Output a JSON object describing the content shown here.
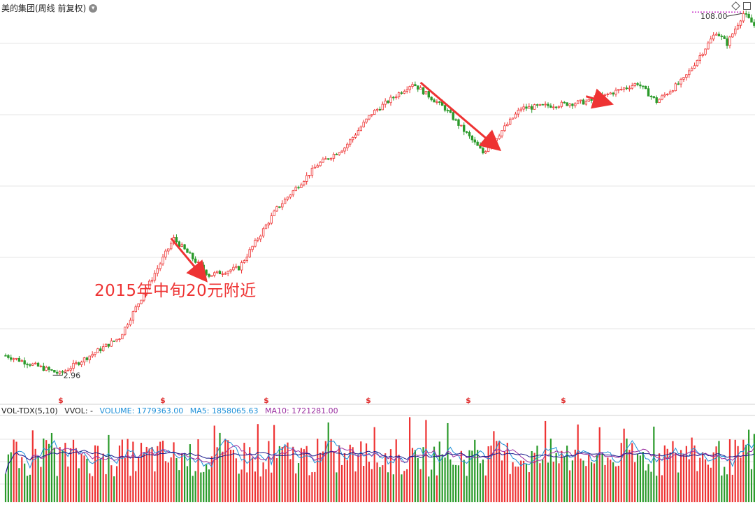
{
  "header": {
    "title": "美的集团(周线 前复权)",
    "settings_icon": "chevron-down-icon",
    "right_icons": [
      "diamond-icon",
      "window-icon"
    ]
  },
  "annotation": {
    "text": "2015年中旬20元附近"
  },
  "volume_legend": {
    "indicator": "VOL-TDX(5,10)",
    "vvol": "VVOL: -",
    "volume": "VOLUME: 1779363.00",
    "ma5": "MA5: 1858065.63",
    "ma10": "MA10: 1721281.00"
  },
  "colors": {
    "up": "#ee3333",
    "down": "#2a9a2a",
    "annotation": "#ee3333",
    "volume_label": "#1e90d8",
    "ma5": "#1e90d8",
    "ma10": "#9a2fa0",
    "ma_curve": "#1a1a8c",
    "high_marker": "#c832c8",
    "dividend_marker": "#e03030",
    "grid": "#e6e6e6"
  },
  "chart_data": [
    {
      "type": "candlestick",
      "title": "美的集团(周线 前复权)",
      "frequency": "weekly",
      "adjustment": "forward-adjusted",
      "ylim": [
        0,
        112
      ],
      "y_scale": "log",
      "grid": true,
      "marked_low": {
        "label": "2.96",
        "value": 2.96
      },
      "marked_high": {
        "label": "108.00",
        "value": 108.0
      },
      "dividend_markers": [
        "$",
        "$",
        "$",
        "$",
        "$",
        "$"
      ],
      "swings": [
        {
          "bar": 0,
          "value": 3.6
        },
        {
          "bar": 20,
          "value": 3.0
        },
        {
          "bar": 42,
          "value": 4.3
        },
        {
          "bar": 62,
          "value": 11.5
        },
        {
          "bar": 75,
          "value": 8.0
        },
        {
          "bar": 86,
          "value": 8.6
        },
        {
          "bar": 100,
          "value": 15.5
        },
        {
          "bar": 115,
          "value": 24.0
        },
        {
          "bar": 125,
          "value": 28.5
        },
        {
          "bar": 135,
          "value": 40.0
        },
        {
          "bar": 150,
          "value": 54.0
        },
        {
          "bar": 162,
          "value": 42.0
        },
        {
          "bar": 176,
          "value": 27.0
        },
        {
          "bar": 190,
          "value": 42.0
        },
        {
          "bar": 215,
          "value": 45.0
        },
        {
          "bar": 233,
          "value": 54.0
        },
        {
          "bar": 240,
          "value": 45.0
        },
        {
          "bar": 250,
          "value": 56.0
        },
        {
          "bar": 262,
          "value": 90.0
        },
        {
          "bar": 266,
          "value": 80.0
        },
        {
          "bar": 272,
          "value": 108.0
        },
        {
          "bar": 276,
          "value": 96.0
        }
      ],
      "trend_arrows": [
        {
          "from_bar": 61,
          "to_bar": 73
        },
        {
          "from_bar": 153,
          "to_bar": 181
        },
        {
          "from_bar": 214,
          "to_bar": 222
        }
      ]
    },
    {
      "type": "bar",
      "title": "VOL-TDX(5,10)",
      "series": [
        {
          "name": "VOLUME",
          "last": 1779363.0
        },
        {
          "name": "MA5",
          "last": 1858065.63
        },
        {
          "name": "MA10",
          "last": 1721281.0
        }
      ]
    }
  ]
}
